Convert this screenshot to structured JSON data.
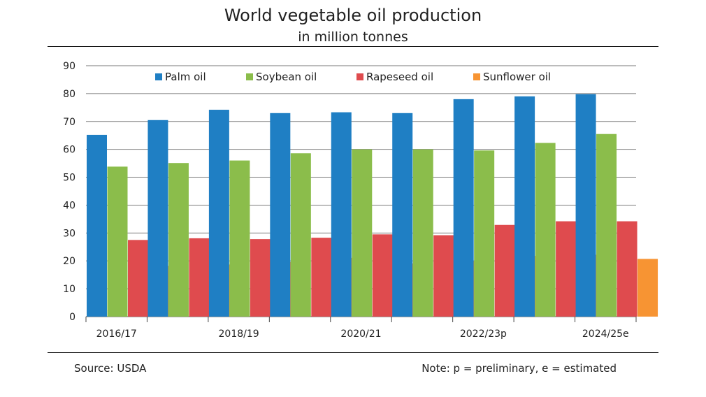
{
  "header": {
    "title": "World vegetable oil production",
    "subtitle": "in million tonnes"
  },
  "footer": {
    "source": "Source: USDA",
    "note": "Note: p = preliminary, e = estimated"
  },
  "chart_data": {
    "type": "bar",
    "title": "World vegetable oil production",
    "subtitle": "in million tonnes",
    "xlabel": "",
    "ylabel": "",
    "ylim": [
      0,
      90
    ],
    "yticks": [
      0,
      10,
      20,
      30,
      40,
      50,
      60,
      70,
      80,
      90
    ],
    "grid": true,
    "legend_position": "top",
    "categories": [
      "2016/17",
      "2017/18",
      "2018/19",
      "2019/20",
      "2020/21",
      "2021/22",
      "2022/23p",
      "2023/24",
      "2024/25e"
    ],
    "x_tick_labels": [
      "2016/17",
      "",
      "2018/19",
      "",
      "2020/21",
      "",
      "2022/23p",
      "",
      "2024/25e"
    ],
    "series": [
      {
        "name": "Palm oil",
        "color": "#1f7fc4",
        "values": [
          65.2,
          70.5,
          74.2,
          73.0,
          73.3,
          73.0,
          78.0,
          79.0,
          79.8
        ]
      },
      {
        "name": "Soybean oil",
        "color": "#8bbd4b",
        "values": [
          53.8,
          55.1,
          56.0,
          58.6,
          60.0,
          60.0,
          59.6,
          62.3,
          65.5
        ]
      },
      {
        "name": "Rapeseed oil",
        "color": "#df4b4e",
        "values": [
          27.5,
          28.1,
          27.8,
          28.3,
          29.5,
          29.2,
          32.9,
          34.2,
          34.2
        ]
      },
      {
        "name": "Sunflower oil",
        "color": "#f79433",
        "values": [
          18.2,
          18.7,
          19.6,
          21.1,
          19.1,
          19.9,
          21.8,
          22.2,
          20.7
        ]
      }
    ]
  }
}
